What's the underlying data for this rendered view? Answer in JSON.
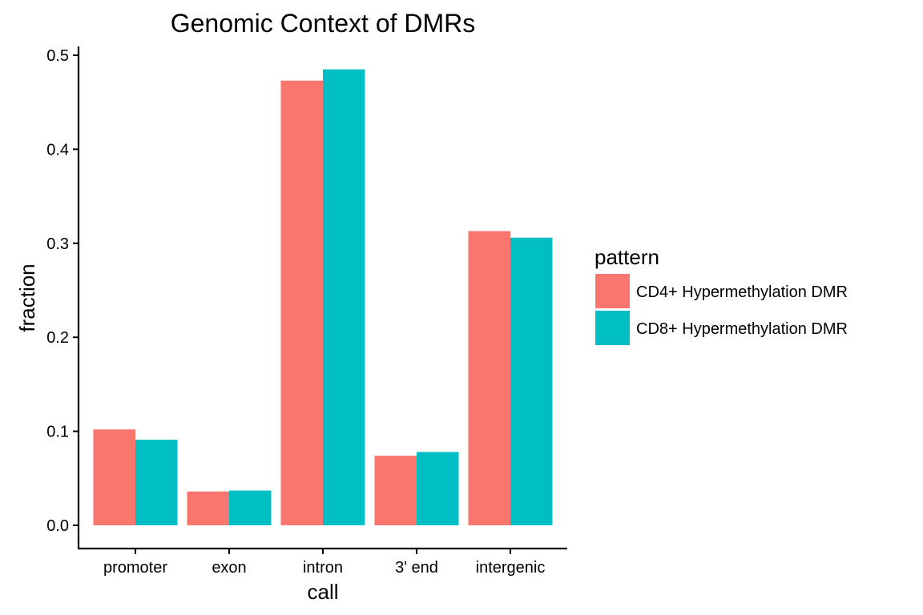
{
  "chart_data": {
    "type": "bar",
    "title": "Genomic Context of DMRs",
    "xlabel": "call",
    "ylabel": "fraction",
    "categories": [
      "promoter",
      "exon",
      "intron",
      "3' end",
      "intergenic"
    ],
    "series": [
      {
        "name": "CD4+ Hypermethylation DMR",
        "color": "#F8766D",
        "values": [
          0.102,
          0.036,
          0.473,
          0.074,
          0.313
        ]
      },
      {
        "name": "CD8+ Hypermethylation DMR",
        "color": "#00BFC4",
        "values": [
          0.091,
          0.037,
          0.485,
          0.078,
          0.306
        ]
      }
    ],
    "ylim": [
      -0.025,
      0.5
    ],
    "yticks": [
      0.0,
      0.1,
      0.2,
      0.3,
      0.4,
      0.5
    ],
    "ytick_labels": [
      "0.0",
      "0.1",
      "0.2",
      "0.3",
      "0.4",
      "0.5"
    ],
    "grid": false,
    "legend": {
      "title": "pattern",
      "position": "right"
    }
  }
}
